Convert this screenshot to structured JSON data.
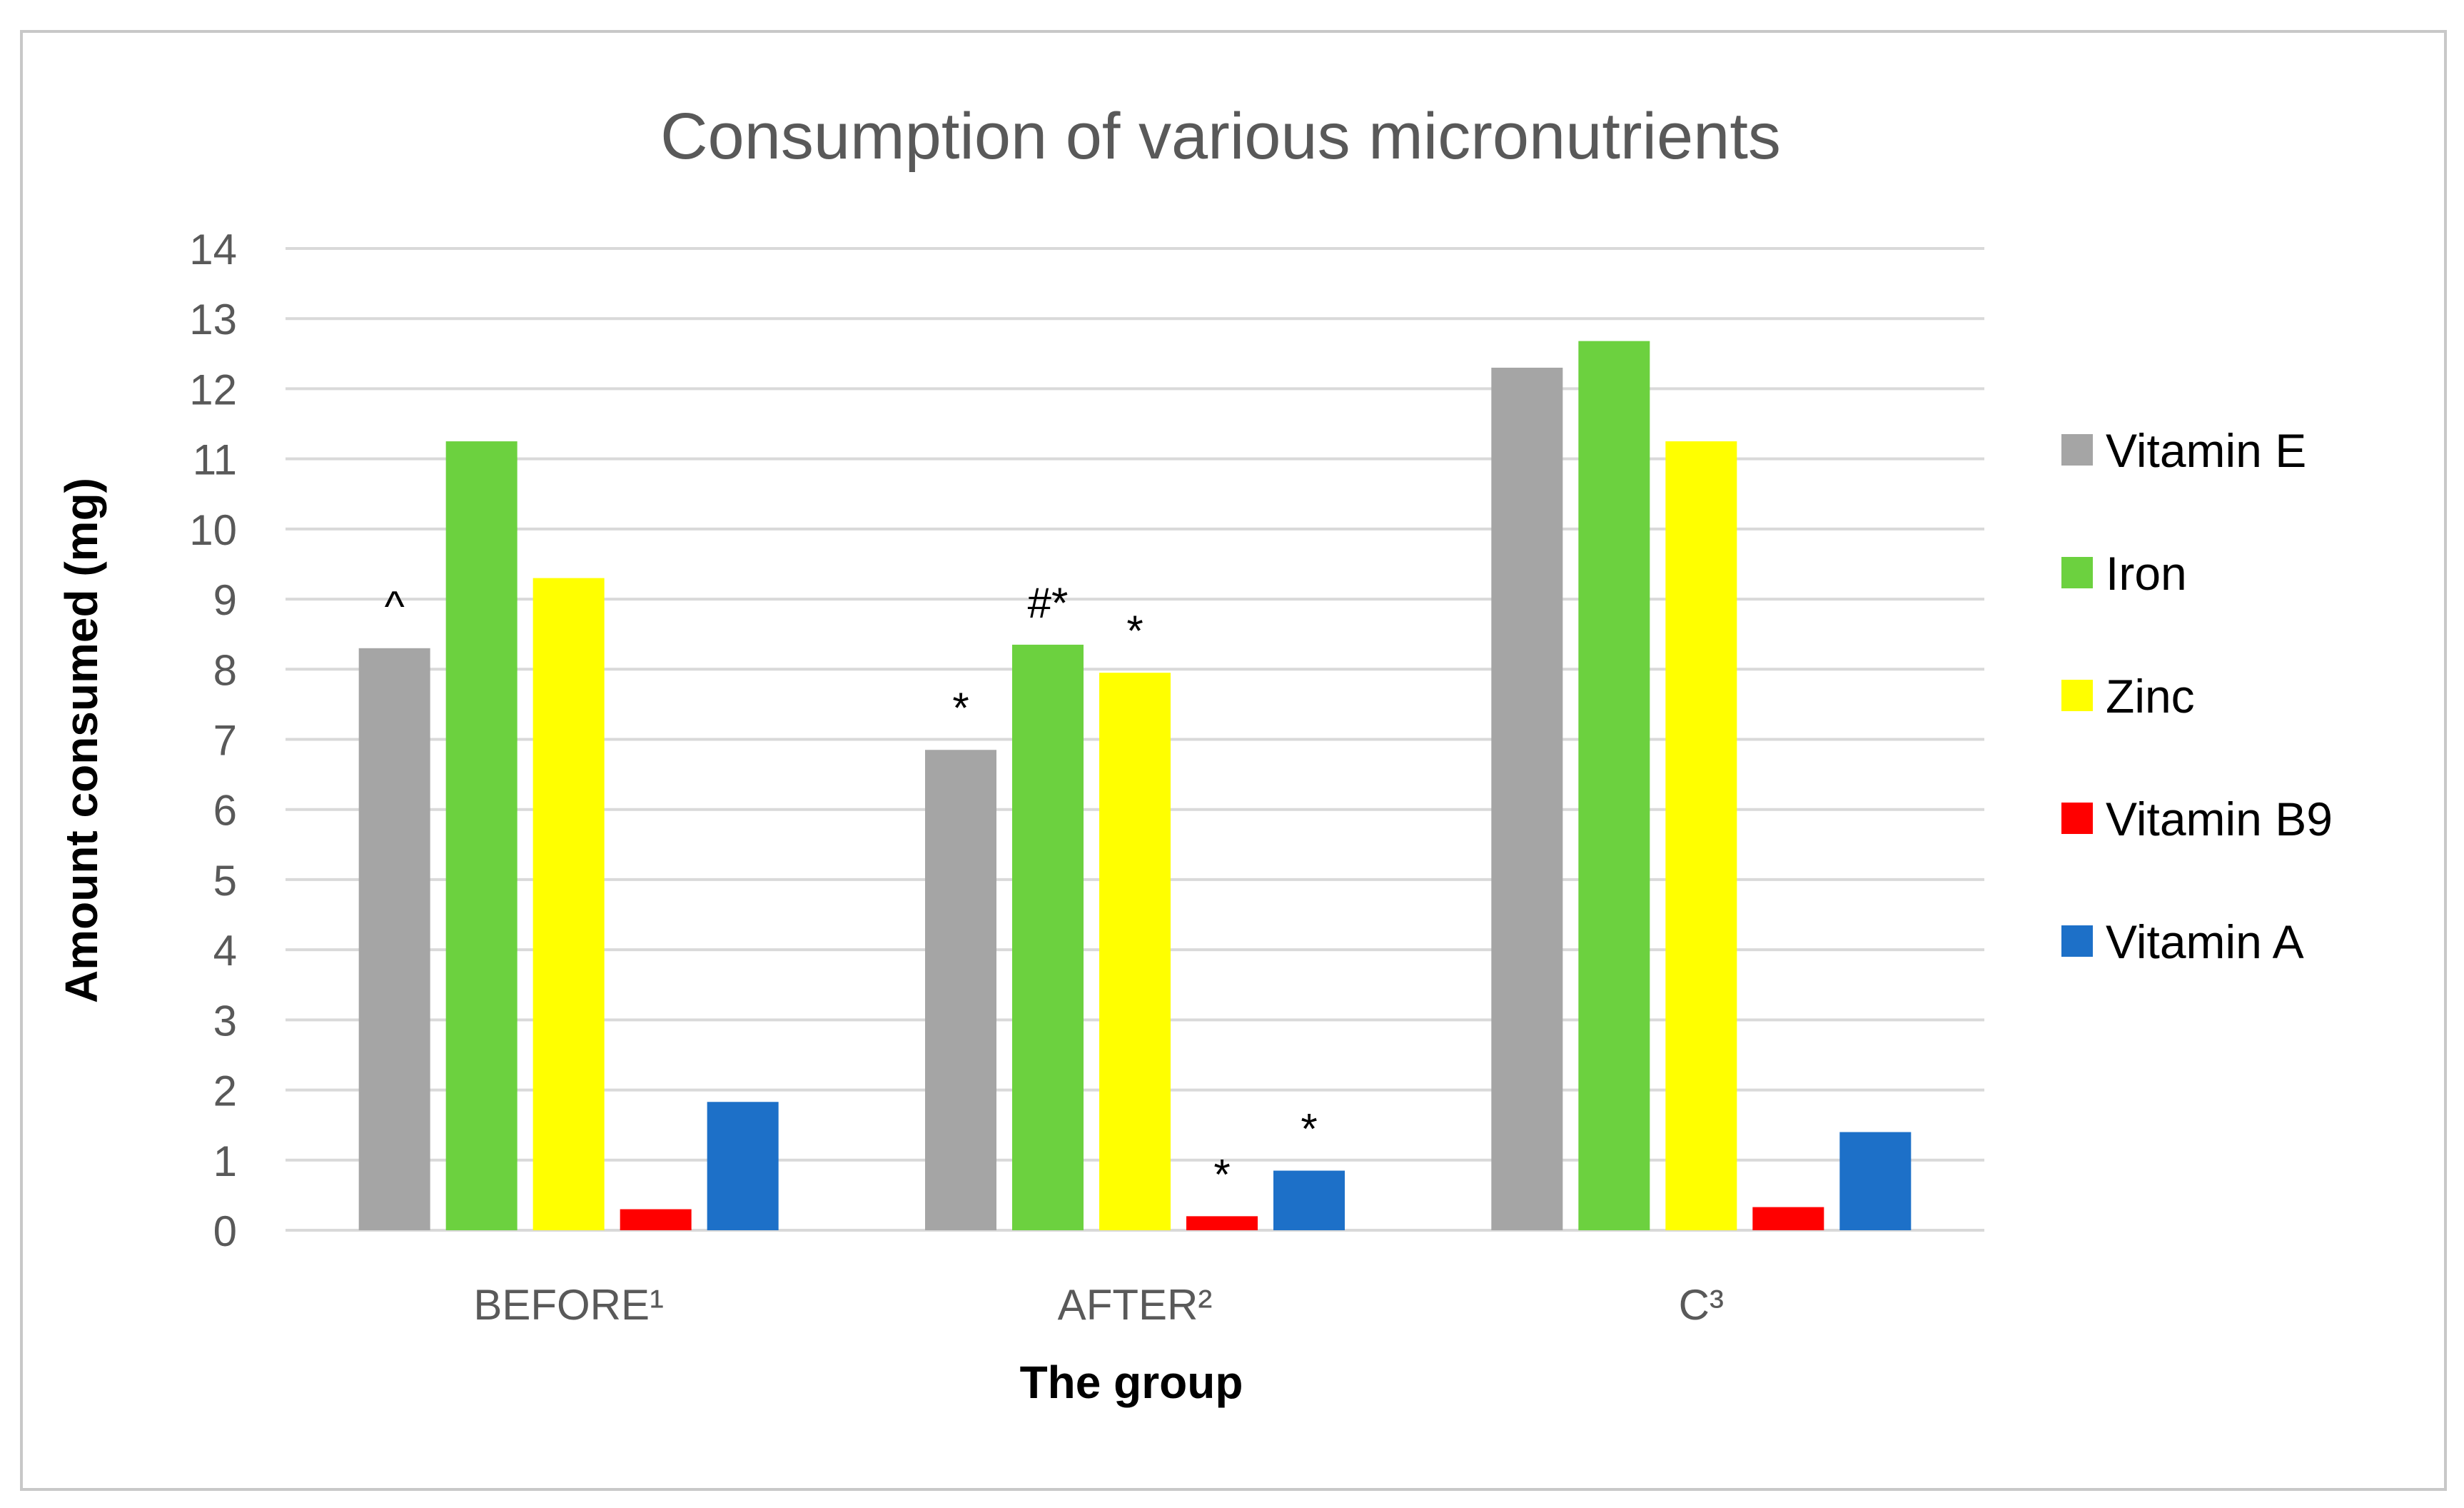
{
  "chart_data": {
    "type": "bar",
    "title": "Consumption of various micronutrients",
    "xlabel": "The group",
    "ylabel": "Amount consumed (mg)",
    "categories": [
      "BEFORE¹",
      "AFTER²",
      "C³"
    ],
    "ylim": [
      0,
      14
    ],
    "yticks": [
      0,
      1,
      2,
      3,
      4,
      5,
      6,
      7,
      8,
      9,
      10,
      11,
      12,
      13,
      14
    ],
    "grid": true,
    "legend_position": "right",
    "series": [
      {
        "name": "Vitamin E",
        "color": "#a5a5a5",
        "values": [
          8.3,
          6.85,
          12.3
        ],
        "annotations": [
          "^",
          "*",
          ""
        ]
      },
      {
        "name": "Iron",
        "color": "#6cd13f",
        "values": [
          11.25,
          8.35,
          12.68
        ],
        "annotations": [
          "",
          "#*",
          ""
        ]
      },
      {
        "name": "Zinc",
        "color": "#ffff00",
        "values": [
          9.3,
          7.95,
          11.25
        ],
        "annotations": [
          "",
          "*",
          ""
        ]
      },
      {
        "name": "Vitamin B9",
        "color": "#ff0000",
        "values": [
          0.3,
          0.2,
          0.33
        ],
        "annotations": [
          "",
          "*",
          ""
        ]
      },
      {
        "name": "Vitamin A",
        "color": "#1d70c8",
        "values": [
          1.83,
          0.85,
          1.4
        ],
        "annotations": [
          "",
          "*",
          ""
        ]
      }
    ]
  }
}
